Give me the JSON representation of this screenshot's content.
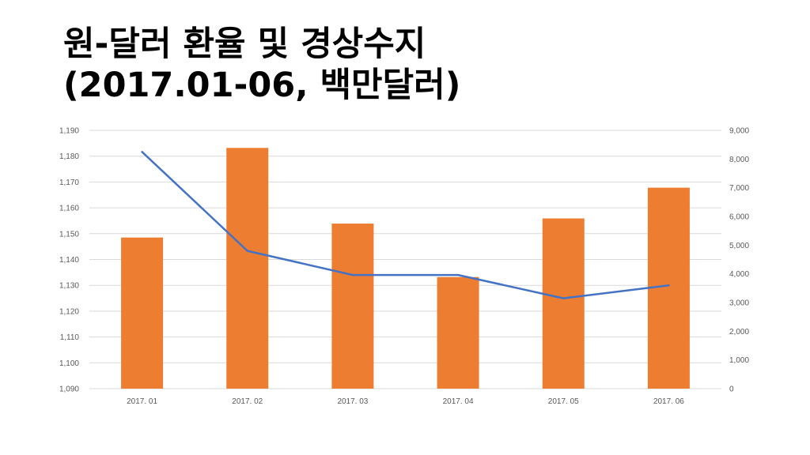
{
  "title": {
    "line1": "원-달러 환율 및 경상수지",
    "line2": "(2017.01-06, 백만달러)"
  },
  "colors": {
    "bar": "#ED7D31",
    "line": "#4472C4",
    "grid": "#D9D9D9",
    "axis_text": "#595959"
  },
  "chart_data": {
    "type": "bar+line",
    "categories": [
      "2017. 01",
      "2017. 02",
      "2017. 03",
      "2017. 04",
      "2017. 05",
      "2017. 06"
    ],
    "series": [
      {
        "type": "bar",
        "axis": "left",
        "values": [
          1148.5,
          1183.2,
          1153.9,
          1133.2,
          1155.9,
          1167.8
        ]
      },
      {
        "type": "line",
        "axis": "right",
        "values": [
          8250,
          4800,
          3960,
          3960,
          3150,
          3600
        ]
      }
    ],
    "y_left": {
      "min": 1090,
      "max": 1190,
      "step": 10,
      "ticks": [
        "1,090",
        "1,100",
        "1,110",
        "1,120",
        "1,130",
        "1,140",
        "1,150",
        "1,160",
        "1,170",
        "1,180",
        "1,190"
      ]
    },
    "y_right": {
      "min": 0,
      "max": 9000,
      "step": 1000,
      "ticks": [
        "0",
        "1,000",
        "2,000",
        "3,000",
        "4,000",
        "5,000",
        "6,000",
        "7,000",
        "8,000",
        "9,000"
      ]
    },
    "grid": true,
    "legend": "none"
  }
}
